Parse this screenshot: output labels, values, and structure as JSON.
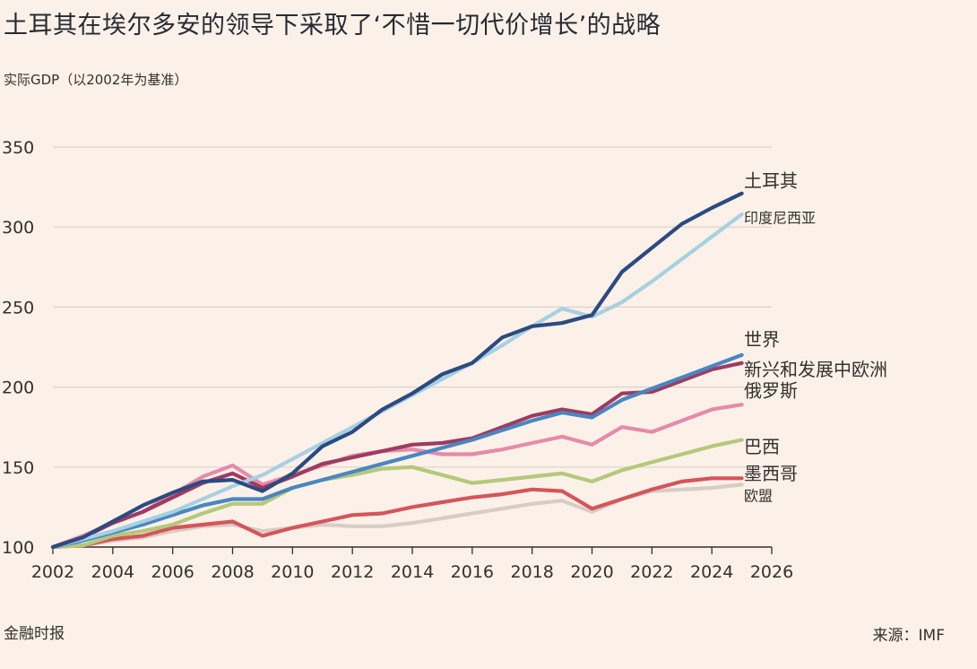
{
  "chart_data": {
    "type": "line",
    "title": "土耳其在埃尔多安的领导下采取了‘不惜一切代价增长’的战略",
    "subtitle": "实际GDP（以2002年为基准）",
    "xlabel": "",
    "ylabel": "",
    "xlim": [
      2002,
      2026
    ],
    "ylim": [
      100,
      350
    ],
    "xticks": [
      2002,
      2004,
      2006,
      2008,
      2010,
      2012,
      2014,
      2016,
      2018,
      2020,
      2022,
      2024,
      2026
    ],
    "yticks": [
      100,
      150,
      200,
      250,
      300,
      350
    ],
    "grid": "horizontal",
    "legend": "inline labels at right end",
    "x": [
      2002,
      2003,
      2004,
      2005,
      2006,
      2007,
      2008,
      2009,
      2010,
      2011,
      2012,
      2013,
      2014,
      2015,
      2016,
      2017,
      2018,
      2019,
      2020,
      2021,
      2022,
      2023,
      2024,
      2025
    ],
    "series": [
      {
        "name": "土耳其",
        "color": "#2b4b80",
        "values": [
          100,
          106,
          116,
          126,
          134,
          141,
          142,
          135,
          146,
          163,
          172,
          186,
          196,
          208,
          215,
          231,
          238,
          240,
          245,
          272,
          287,
          302,
          312,
          321
        ]
      },
      {
        "name": "印度尼西亚",
        "color": "#a7d0e3",
        "values": [
          100,
          105,
          110,
          116,
          122,
          130,
          138,
          145,
          155,
          165,
          175,
          185,
          195,
          205,
          215,
          226,
          238,
          249,
          244,
          253,
          266,
          280,
          294,
          308
        ]
      },
      {
        "name": "世界",
        "color": "#4a86c1",
        "values": [
          100,
          104,
          109,
          114,
          120,
          126,
          130,
          130,
          137,
          142,
          147,
          152,
          157,
          162,
          167,
          173,
          179,
          184,
          181,
          192,
          199,
          206,
          213,
          220
        ]
      },
      {
        "name": "新兴和发展中欧洲",
        "color": "#9e3b62",
        "values": [
          100,
          106,
          115,
          122,
          131,
          140,
          146,
          137,
          144,
          152,
          156,
          160,
          164,
          165,
          168,
          175,
          182,
          186,
          183,
          196,
          197,
          204,
          211,
          215
        ]
      },
      {
        "name": "俄罗斯",
        "color": "#e68aaa",
        "values": [
          100,
          107,
          115,
          122,
          133,
          144,
          151,
          139,
          145,
          151,
          157,
          160,
          161,
          158,
          158,
          161,
          165,
          169,
          164,
          175,
          172,
          179,
          186,
          189
        ]
      },
      {
        "name": "巴西",
        "color": "#b4c97a",
        "values": [
          100,
          101,
          107,
          110,
          114,
          121,
          127,
          127,
          137,
          142,
          145,
          149,
          150,
          145,
          140,
          142,
          144,
          146,
          141,
          148,
          153,
          158,
          163,
          167
        ]
      },
      {
        "name": "墨西哥",
        "color": "#d5555a",
        "values": [
          100,
          101,
          105,
          107,
          112,
          114,
          116,
          107,
          112,
          116,
          120,
          121,
          125,
          128,
          131,
          133,
          136,
          135,
          124,
          130,
          136,
          141,
          143,
          143
        ]
      },
      {
        "name": "欧盟",
        "color": "#d8ccc4",
        "values": [
          100,
          101,
          104,
          106,
          110,
          113,
          114,
          110,
          112,
          114,
          113,
          113,
          115,
          118,
          121,
          124,
          127,
          129,
          122,
          130,
          135,
          136,
          137,
          139
        ]
      }
    ],
    "labels": [
      {
        "name": "土耳其",
        "y": 329,
        "size": 20
      },
      {
        "name": "印度尼西亚",
        "y": 306,
        "size": 16
      },
      {
        "name": "世界",
        "y": 230,
        "size": 20
      },
      {
        "name": "新兴和发展中欧洲",
        "y": 211,
        "size": 20
      },
      {
        "name": "俄罗斯",
        "y": 198,
        "size": 20
      },
      {
        "name": "巴西",
        "y": 163,
        "size": 20
      },
      {
        "name": "墨西哥",
        "y": 146,
        "size": 20
      },
      {
        "name": "欧盟",
        "y": 132,
        "size": 16
      }
    ]
  },
  "footer": {
    "source_brand": "金融时报",
    "source": "来源：IMF"
  }
}
